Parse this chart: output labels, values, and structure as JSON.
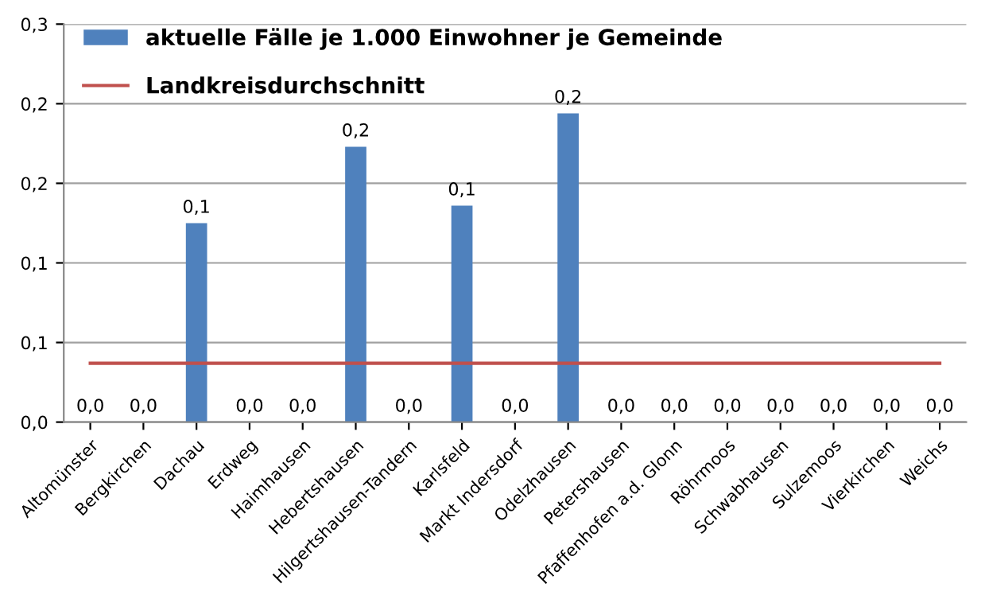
{
  "chart_data": {
    "type": "bar",
    "categories": [
      "Altomünster",
      "Bergkirchen",
      "Dachau",
      "Erdweg",
      "Haimhausen",
      "Hebertshausen",
      "Hilgertshausen-Tandern",
      "Karlsfeld",
      "Markt Indersdorf",
      "Odelzhausen",
      "Petershausen",
      "Pfaffenhofen a.d. Glonn",
      "Röhrmoos",
      "Schwabhausen",
      "Sulzemoos",
      "Vierkirchen",
      "Weichs"
    ],
    "series": [
      {
        "name": "aktuelle Fälle je 1.000 Einwohner je Gemeinde",
        "color": "#4f81bd",
        "values": [
          0,
          0,
          0.125,
          0,
          0,
          0.173,
          0,
          0.136,
          0,
          0.194,
          0,
          0,
          0,
          0,
          0,
          0,
          0
        ],
        "value_labels": [
          "0,0",
          "0,0",
          "0,1",
          "0,0",
          "0,0",
          "0,2",
          "0,0",
          "0,1",
          "0,0",
          "0,2",
          "0,0",
          "0,0",
          "0,0",
          "0,0",
          "0,0",
          "0,0",
          "0,0"
        ]
      },
      {
        "name": "Landkreisdurchschnitt",
        "type": "line",
        "color": "#c0504d",
        "values": [
          0.037,
          0.037,
          0.037,
          0.037,
          0.037,
          0.037,
          0.037,
          0.037,
          0.037,
          0.037,
          0.037,
          0.037,
          0.037,
          0.037,
          0.037,
          0.037,
          0.037
        ]
      }
    ],
    "ylim": [
      0,
      0.25
    ],
    "yticks": [
      {
        "value": 0,
        "label": "0,0"
      },
      {
        "value": 0.05,
        "label": "0,1"
      },
      {
        "value": 0.1,
        "label": "0,1"
      },
      {
        "value": 0.15,
        "label": "0,2"
      },
      {
        "value": 0.2,
        "label": "0,2"
      },
      {
        "value": 0.25,
        "label": "0,3"
      }
    ],
    "grid": "y",
    "legend": "top left"
  }
}
